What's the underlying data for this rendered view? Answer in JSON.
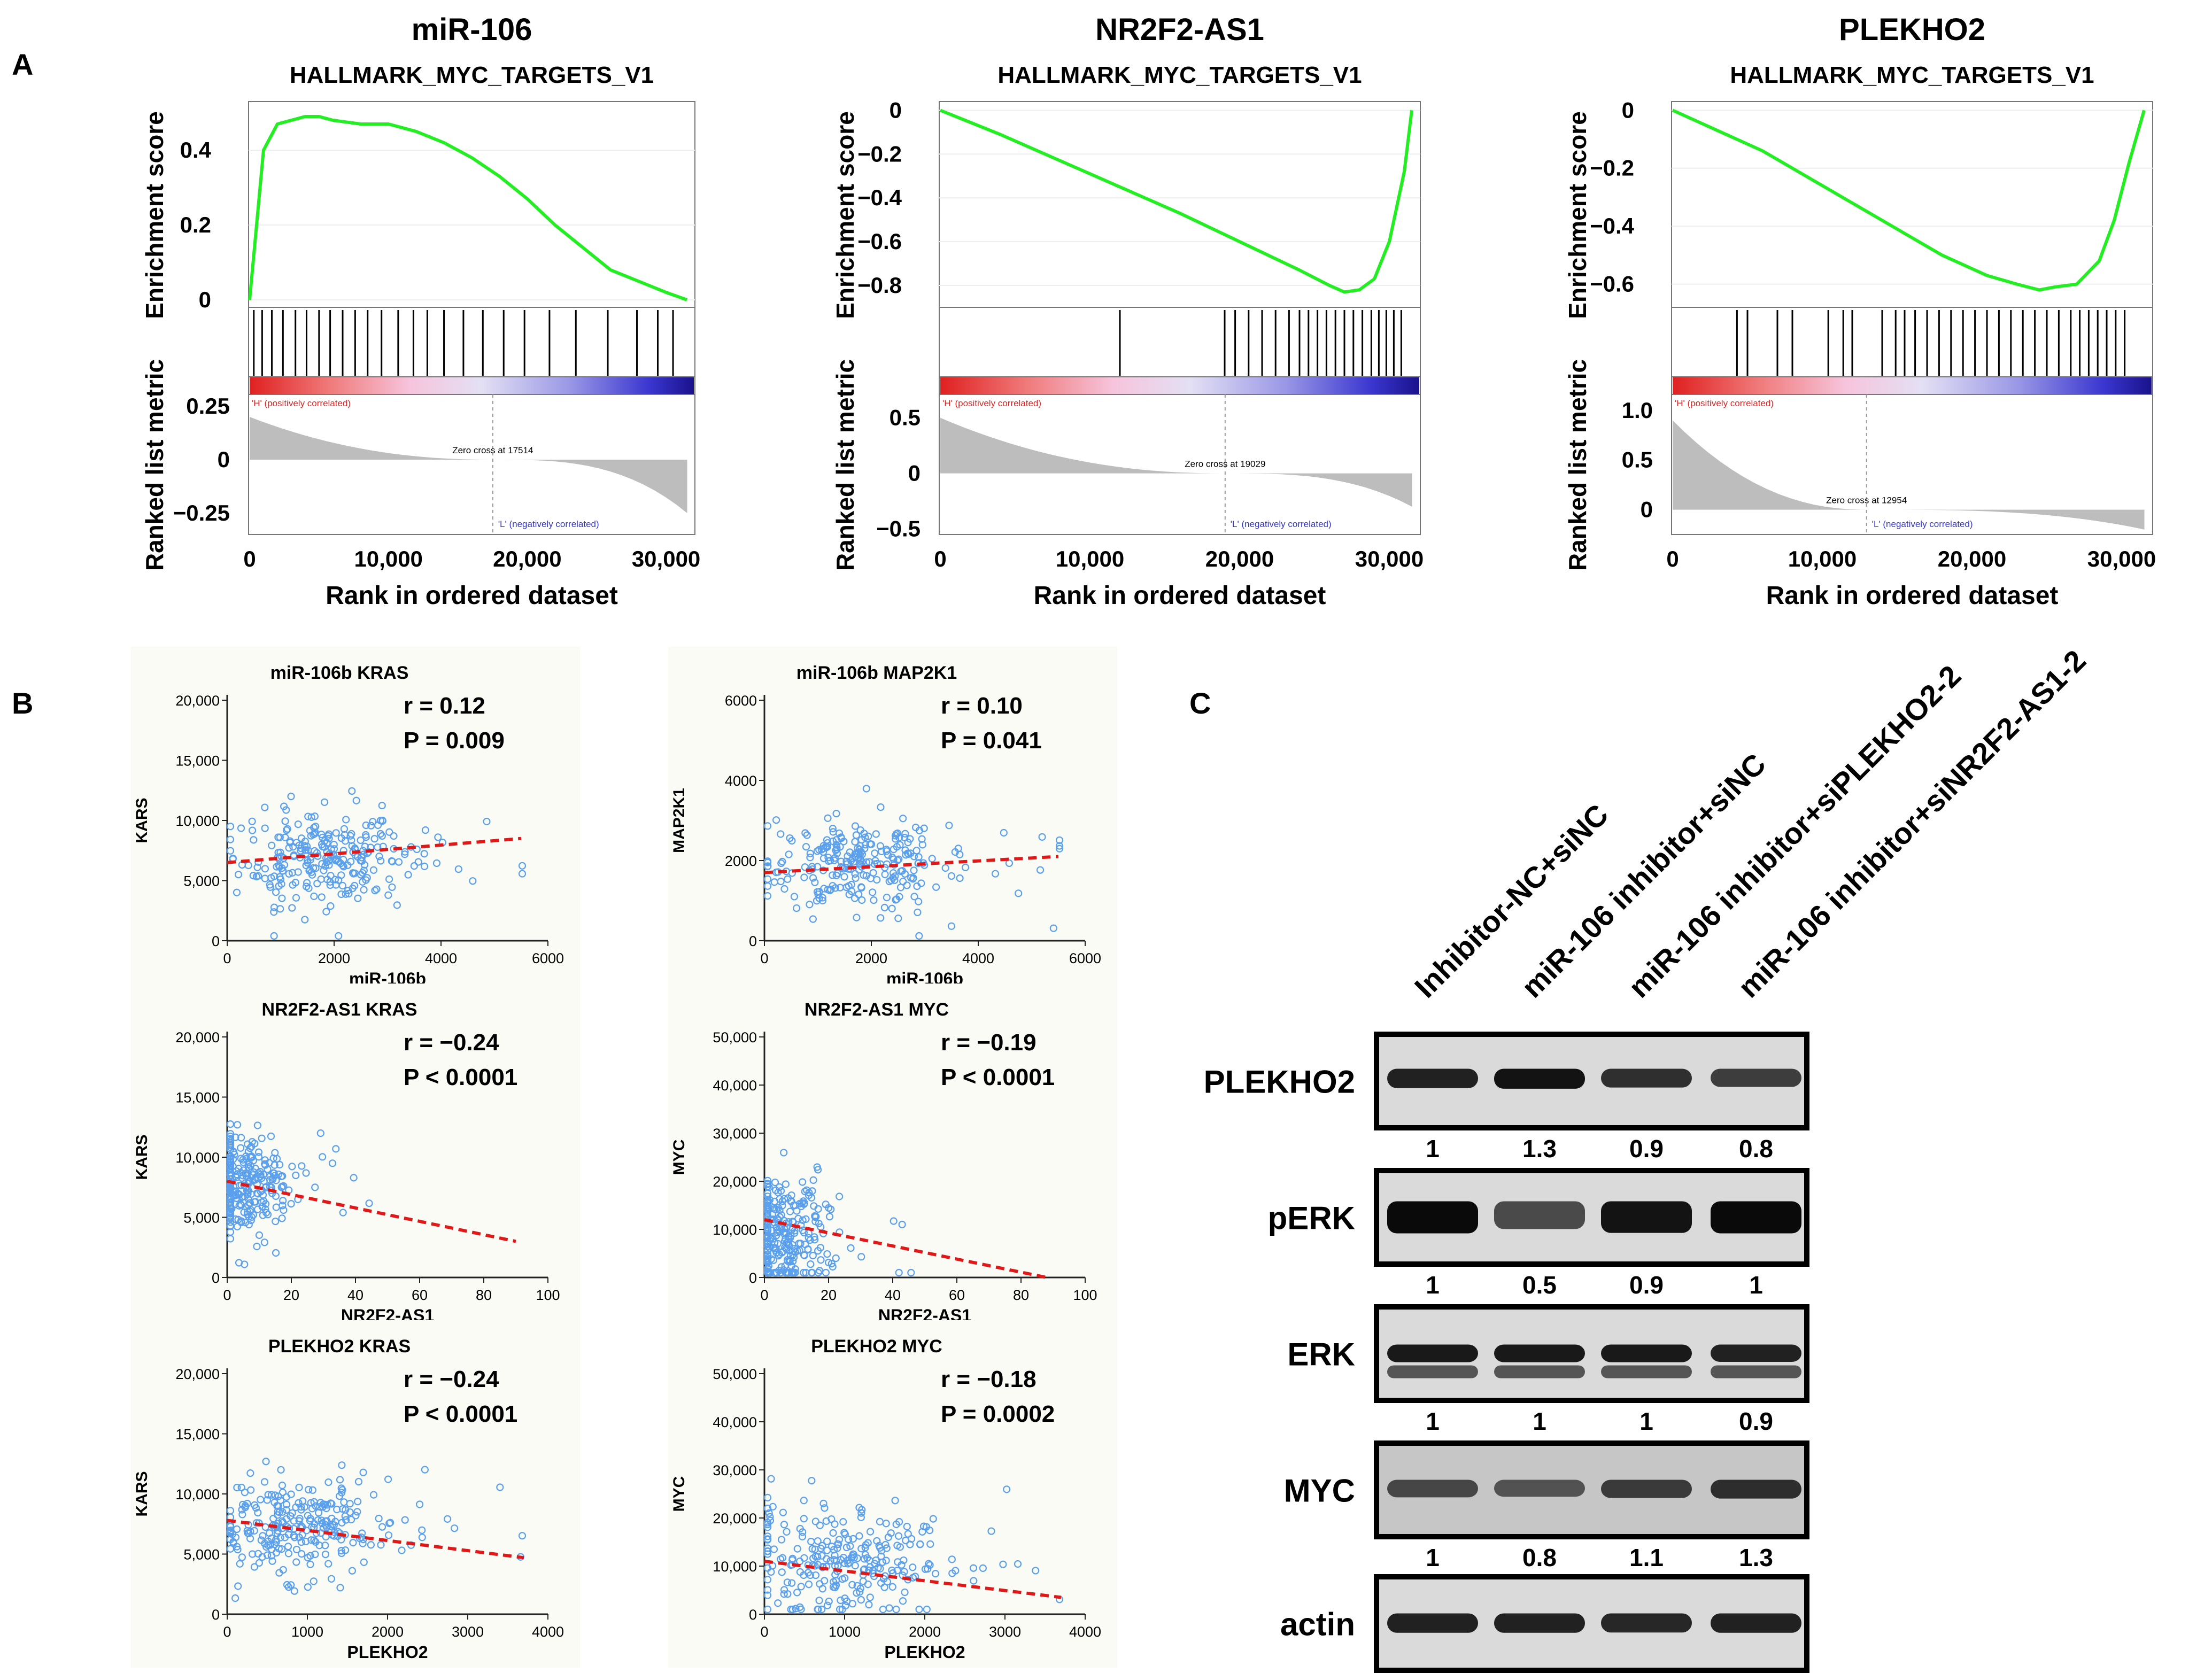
{
  "panel_labels": {
    "a": "A",
    "b": "B",
    "c": "C"
  },
  "gsea_common": {
    "es_label": "Enrichment score",
    "metric_label": "Ranked list metric",
    "xlabel": "Rank in ordered dataset",
    "pos_label": "'H' (positively correlated)",
    "neg_label": "'L' (negatively correlated)"
  },
  "scatter_common": {
    "r_prefix": "r = "
  },
  "blot": {
    "lanes": [
      "Inhibitor-NC+siNC",
      "miR-106 inhibitor+siNC",
      "miR-106 inhibitor+siPLEKHO2-2",
      "miR-106 inhibitor+siNR2F2-AS1-2"
    ],
    "rows": [
      {
        "label": "PLEKHO2",
        "values": [
          "1",
          "1.3",
          "0.9",
          "0.8"
        ]
      },
      {
        "label": "pERK",
        "values": [
          "1",
          "0.5",
          "0.9",
          "1"
        ]
      },
      {
        "label": "ERK",
        "values": [
          "1",
          "1",
          "1",
          "0.9"
        ]
      },
      {
        "label": "MYC",
        "values": [
          "1",
          "0.8",
          "1.1",
          "1.3"
        ]
      },
      {
        "label": "actin",
        "values": []
      }
    ]
  },
  "chart_data": [
    {
      "type": "line",
      "panel": "A",
      "title": "miR-106",
      "subtitle": "HALLMARK_MYC_TARGETS_V1",
      "x": [
        0,
        1000,
        2000,
        3000,
        4000,
        5000,
        6000,
        8000,
        10000,
        12000,
        14000,
        16000,
        18000,
        20000,
        22000,
        24000,
        26000,
        28000,
        30000,
        31500
      ],
      "y": [
        0,
        0.4,
        0.47,
        0.48,
        0.49,
        0.49,
        0.48,
        0.47,
        0.47,
        0.45,
        0.42,
        0.38,
        0.33,
        0.27,
        0.2,
        0.14,
        0.08,
        0.05,
        0.02,
        0
      ],
      "es_ylim": [
        -0.02,
        0.53
      ],
      "es_ticks": [
        "0",
        "0.2",
        "0.4"
      ],
      "es_tick_values": [
        0,
        0.2,
        0.4
      ],
      "metric_ylim": [
        -0.35,
        0.3
      ],
      "metric_ticks": [
        "0.25",
        "0",
        "−0.25"
      ],
      "metric_tick_values": [
        0.25,
        0,
        -0.25
      ],
      "metric_start": 0.2,
      "metric_end": -0.25,
      "zero_cross": 17514,
      "zero_cross_label": "Zero cross at 17514",
      "hits": [
        300,
        900,
        1600,
        2400,
        3300,
        4100,
        5000,
        5800,
        6700,
        7600,
        8500,
        9500,
        10700,
        11800,
        12800,
        14000,
        15400,
        16800,
        18300,
        19800,
        21600,
        23500,
        25800,
        27900,
        29400,
        30500
      ],
      "xlim": [
        0,
        32000
      ],
      "xticks": [
        "0",
        "10,000",
        "20,000",
        "30,000"
      ],
      "xtick_values": [
        0,
        10000,
        20000,
        30000
      ],
      "xlabel": "Rank in ordered dataset"
    },
    {
      "type": "line",
      "panel": "A",
      "title": "NR2F2-AS1",
      "subtitle": "HALLMARK_MYC_TARGETS_V1",
      "x": [
        0,
        4000,
        8000,
        12000,
        16000,
        20000,
        24000,
        26000,
        27000,
        28000,
        29000,
        30000,
        31000,
        31500
      ],
      "y": [
        0,
        -0.11,
        -0.23,
        -0.35,
        -0.47,
        -0.6,
        -0.73,
        -0.8,
        -0.83,
        -0.82,
        -0.77,
        -0.6,
        -0.28,
        0
      ],
      "es_ylim": [
        -0.9,
        0.04
      ],
      "es_ticks": [
        "0",
        "−0.2",
        "−0.4",
        "−0.6",
        "−0.8"
      ],
      "es_tick_values": [
        0,
        -0.2,
        -0.4,
        -0.6,
        -0.8
      ],
      "metric_ylim": [
        -0.55,
        0.7
      ],
      "metric_ticks": [
        "0.5",
        "0",
        "−0.5"
      ],
      "metric_tick_values": [
        0.5,
        0,
        -0.5
      ],
      "metric_start": 0.5,
      "metric_end": -0.3,
      "zero_cross": 19029,
      "zero_cross_label": "Zero cross at 19029",
      "hits": [
        12000,
        19000,
        19700,
        20600,
        21500,
        22400,
        23300,
        24000,
        24600,
        25200,
        25800,
        26400,
        27000,
        27600,
        28200,
        28800,
        29300,
        29800,
        30300,
        30800
      ],
      "xlim": [
        0,
        32000
      ],
      "xticks": [
        "0",
        "10,000",
        "20,000",
        "30,000"
      ],
      "xtick_values": [
        0,
        10000,
        20000,
        30000
      ],
      "xlabel": "Rank in ordered dataset"
    },
    {
      "type": "line",
      "panel": "A",
      "title": "PLEKHO2",
      "subtitle": "HALLMARK_MYC_TARGETS_V1",
      "x": [
        0,
        3000,
        6000,
        9000,
        12000,
        15000,
        18000,
        21000,
        23000,
        24500,
        25500,
        27000,
        28500,
        29500,
        30500,
        31500
      ],
      "y": [
        0,
        -0.07,
        -0.14,
        -0.23,
        -0.32,
        -0.41,
        -0.5,
        -0.57,
        -0.6,
        -0.62,
        -0.61,
        -0.6,
        -0.52,
        -0.38,
        -0.18,
        0
      ],
      "es_ylim": [
        -0.68,
        0.03
      ],
      "es_ticks": [
        "0",
        "−0.2",
        "−0.4",
        "−0.6"
      ],
      "es_tick_values": [
        0,
        -0.2,
        -0.4,
        -0.6
      ],
      "metric_ylim": [
        -0.25,
        1.15
      ],
      "metric_ticks": [
        "1.0",
        "0.5",
        "0"
      ],
      "metric_tick_values": [
        1.0,
        0.5,
        0
      ],
      "metric_start": 0.9,
      "metric_end": -0.2,
      "zero_cross": 12954,
      "zero_cross_label": "Zero cross at 12954",
      "hits": [
        4300,
        5000,
        7000,
        8000,
        10400,
        11400,
        12000,
        14000,
        14900,
        15500,
        16200,
        17000,
        17800,
        18600,
        19400,
        20200,
        21000,
        21800,
        22600,
        23400,
        24200,
        25000,
        25800,
        26600,
        27200,
        27800,
        28400,
        29000,
        29600,
        30200
      ],
      "xlim": [
        0,
        32000
      ],
      "xticks": [
        "0",
        "10,000",
        "20,000",
        "30,000"
      ],
      "xtick_values": [
        0,
        10000,
        20000,
        30000
      ],
      "xlabel": "Rank in ordered dataset"
    },
    {
      "type": "scatter",
      "panel": "B",
      "title": "miR-106b    KRAS",
      "xlabel": "miR-106b",
      "ylabel": "KARS",
      "xlim": [
        0,
        6000
      ],
      "ylim": [
        0,
        20000
      ],
      "xticks": [
        "0",
        "2000",
        "4000",
        "6000"
      ],
      "xtick_values": [
        0,
        2000,
        4000,
        6000
      ],
      "yticks": [
        "0",
        "5,000",
        "10,000",
        "15,000",
        "20,000"
      ],
      "ytick_values": [
        0,
        5000,
        10000,
        15000,
        20000
      ],
      "r": "0.12",
      "p": "P = 0.009",
      "trend": [
        [
          0,
          6500
        ],
        [
          5500,
          8500
        ]
      ],
      "cloud": {
        "cx": 1700,
        "cy": 7000,
        "sx": 800,
        "sy": 2000
      }
    },
    {
      "type": "scatter",
      "panel": "B",
      "title": "miR-106b    MAP2K1",
      "xlabel": "miR-106b",
      "ylabel": "MAP2K1",
      "xlim": [
        0,
        6000
      ],
      "ylim": [
        0,
        6000
      ],
      "xticks": [
        "0",
        "2000",
        "4000",
        "6000"
      ],
      "xtick_values": [
        0,
        2000,
        4000,
        6000
      ],
      "yticks": [
        "0",
        "2000",
        "4000",
        "6000"
      ],
      "ytick_values": [
        0,
        2000,
        4000,
        6000
      ],
      "r": "0.10",
      "p": "P = 0.041",
      "trend": [
        [
          0,
          1700
        ],
        [
          5500,
          2100
        ]
      ],
      "cloud": {
        "cx": 1700,
        "cy": 1900,
        "sx": 800,
        "sy": 600
      }
    },
    {
      "type": "scatter",
      "panel": "B",
      "title": "NR2F2-AS1    KRAS",
      "xlabel": "NR2F2-AS1",
      "ylabel": "KARS",
      "xlim": [
        0,
        100
      ],
      "ylim": [
        0,
        20000
      ],
      "xticks": [
        "0",
        "20",
        "40",
        "60",
        "80",
        "100"
      ],
      "xtick_values": [
        0,
        20,
        40,
        60,
        80,
        100
      ],
      "yticks": [
        "0",
        "5,000",
        "10,000",
        "15,000",
        "20,000"
      ],
      "ytick_values": [
        0,
        5000,
        10000,
        15000,
        20000
      ],
      "r": "−0.24",
      "p": "P < 0.0001",
      "trend": [
        [
          0,
          8000
        ],
        [
          90,
          3000
        ]
      ],
      "cloud": {
        "cx": 5,
        "cy": 7500,
        "sx": 7,
        "sy": 2200
      }
    },
    {
      "type": "scatter",
      "panel": "B",
      "title": "NR2F2-AS1    MYC",
      "xlabel": "NR2F2-AS1",
      "ylabel": "MYC",
      "xlim": [
        0,
        100
      ],
      "ylim": [
        0,
        50000
      ],
      "xticks": [
        "0",
        "20",
        "40",
        "60",
        "80",
        "100"
      ],
      "xtick_values": [
        0,
        20,
        40,
        60,
        80,
        100
      ],
      "yticks": [
        "0",
        "10,000",
        "20,000",
        "30,000",
        "40,000",
        "50,000"
      ],
      "ytick_values": [
        0,
        10000,
        20000,
        30000,
        40000,
        50000
      ],
      "r": "−0.19",
      "p": "P < 0.0001",
      "trend": [
        [
          0,
          12000
        ],
        [
          88,
          0
        ]
      ],
      "cloud": {
        "cx": 5,
        "cy": 9000,
        "sx": 7,
        "sy": 6500
      }
    },
    {
      "type": "scatter",
      "panel": "B",
      "title": "PLEKHO2    KRAS",
      "xlabel": "PLEKHO2",
      "ylabel": "KARS",
      "xlim": [
        0,
        4000
      ],
      "ylim": [
        0,
        20000
      ],
      "xticks": [
        "0",
        "1000",
        "2000",
        "3000",
        "4000"
      ],
      "xtick_values": [
        0,
        1000,
        2000,
        3000,
        4000
      ],
      "yticks": [
        "0",
        "5,000",
        "10,000",
        "15,000",
        "20,000"
      ],
      "ytick_values": [
        0,
        5000,
        10000,
        15000,
        20000
      ],
      "r": "−0.24",
      "p": "P < 0.0001",
      "trend": [
        [
          0,
          7800
        ],
        [
          3700,
          4700
        ]
      ],
      "cloud": {
        "cx": 800,
        "cy": 7200,
        "sx": 550,
        "sy": 2000
      }
    },
    {
      "type": "scatter",
      "panel": "B",
      "title": "PLEKHO2    MYC",
      "xlabel": "PLEKHO2",
      "ylabel": "MYC",
      "xlim": [
        0,
        4000
      ],
      "ylim": [
        0,
        50000
      ],
      "xticks": [
        "0",
        "1000",
        "2000",
        "3000",
        "4000"
      ],
      "xtick_values": [
        0,
        1000,
        2000,
        3000,
        4000
      ],
      "yticks": [
        "0",
        "10,000",
        "20,000",
        "30,000",
        "40,000",
        "50,000"
      ],
      "ytick_values": [
        0,
        10000,
        20000,
        30000,
        40000,
        50000
      ],
      "r": "−0.18",
      "p": "P = 0.0002",
      "trend": [
        [
          0,
          11000
        ],
        [
          3700,
          3500
        ]
      ],
      "cloud": {
        "cx": 900,
        "cy": 11000,
        "sx": 550,
        "sy": 6000
      }
    }
  ]
}
